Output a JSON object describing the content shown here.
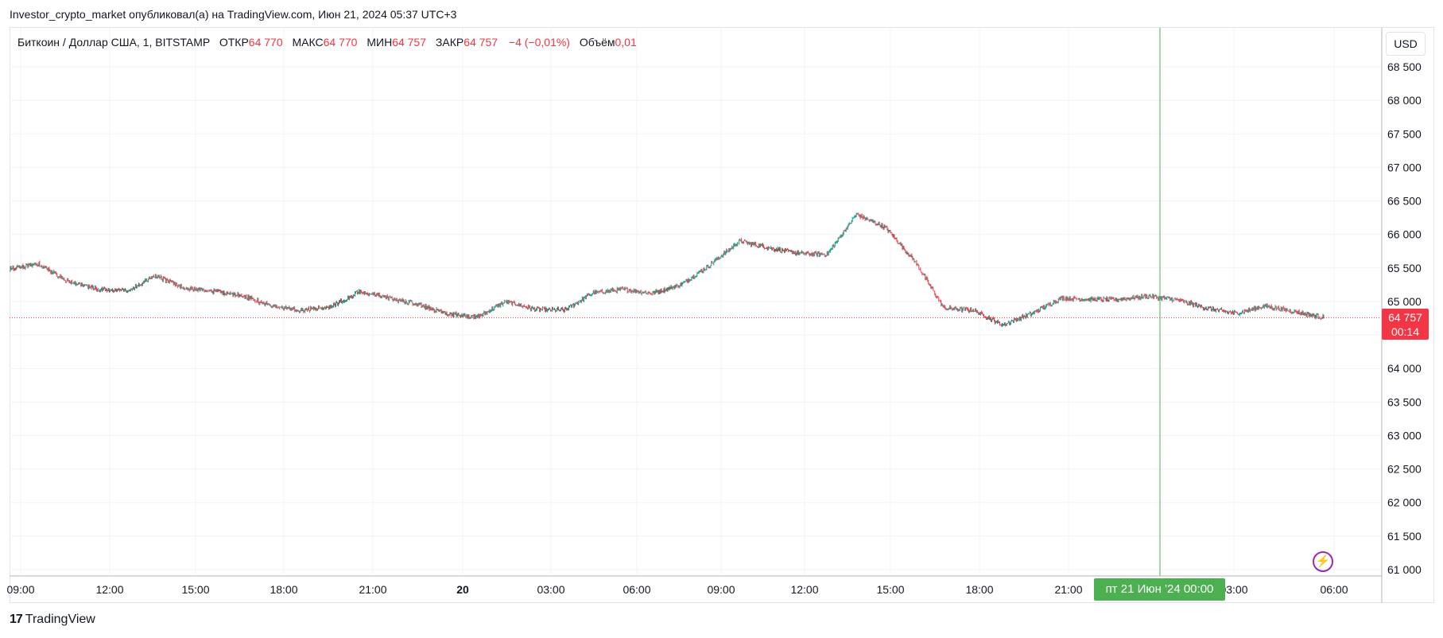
{
  "header": {
    "published_by": "Investor_crypto_market опубликовал(а) на TradingView.com, Июн 21, 2024 05:37 UTC+3"
  },
  "legend": {
    "symbol": "Биткоин / Доллар США, 1, BITSTAMP",
    "open_label": "ОТКР",
    "open_value": "64 770",
    "high_label": "МАКС",
    "high_value": "64 770",
    "low_label": "МИН",
    "low_value": "64 757",
    "close_label": "ЗАКР",
    "close_value": "64 757",
    "change": "−4 (−0,01%)",
    "volume_label": "Объём",
    "volume_value": "0,01"
  },
  "currency_button": "USD",
  "last_price": {
    "price": "64 757",
    "countdown": "00:14",
    "value": 64757
  },
  "crosshair": {
    "date_label": "пт 21 Июн '24   00:00"
  },
  "footer": {
    "logo": "17",
    "brand": "TradingView"
  },
  "colors": {
    "up": "#089981",
    "down": "#f23645",
    "crosshair": "#4caf50",
    "grid": "#f0f3fa",
    "price_line": "#f23645",
    "alert_icon": "#9c27b0"
  },
  "icons": {
    "alert": "lightning-icon"
  },
  "chart_data": {
    "type": "candlestick",
    "title": "Биткоин / Доллар США, 1, BITSTAMP",
    "y_axis_ticks": [
      "68 500",
      "68 000",
      "67 500",
      "67 000",
      "66 500",
      "66 000",
      "65 500",
      "65 000",
      "64 500",
      "64 000",
      "63 500",
      "63 000",
      "62 500",
      "62 000",
      "61 500",
      "61 000"
    ],
    "x_axis_ticks": [
      "09:00",
      "12:00",
      "15:00",
      "18:00",
      "21:00",
      "20",
      "03:00",
      "06:00",
      "09:00",
      "12:00",
      "15:00",
      "18:00",
      "21:00",
      "03:00",
      "06:00"
    ],
    "ylim": [
      61000,
      68500
    ],
    "x": [
      "19 Jun 09:00",
      "19 Jun 10:00",
      "19 Jun 11:00",
      "19 Jun 12:00",
      "19 Jun 13:00",
      "19 Jun 14:00",
      "19 Jun 15:00",
      "19 Jun 16:00",
      "19 Jun 17:00",
      "19 Jun 18:00",
      "19 Jun 19:00",
      "19 Jun 20:00",
      "19 Jun 21:00",
      "19 Jun 22:00",
      "19 Jun 23:00",
      "20 Jun 00:00",
      "20 Jun 01:00",
      "20 Jun 02:00",
      "20 Jun 03:00",
      "20 Jun 04:00",
      "20 Jun 05:00",
      "20 Jun 06:00",
      "20 Jun 07:00",
      "20 Jun 08:00",
      "20 Jun 09:00",
      "20 Jun 10:00",
      "20 Jun 11:00",
      "20 Jun 12:00",
      "20 Jun 13:00",
      "20 Jun 14:00",
      "20 Jun 15:00",
      "20 Jun 16:00",
      "20 Jun 17:00",
      "20 Jun 18:00",
      "20 Jun 19:00",
      "20 Jun 20:00",
      "20 Jun 21:00",
      "20 Jun 22:00",
      "20 Jun 23:00",
      "21 Jun 00:00",
      "21 Jun 01:00",
      "21 Jun 02:00",
      "21 Jun 03:00",
      "21 Jun 04:00",
      "21 Jun 05:00",
      "21 Jun 05:37"
    ],
    "close": [
      65480,
      65560,
      65300,
      65180,
      65150,
      65380,
      65200,
      65150,
      65080,
      64930,
      64870,
      64920,
      65150,
      65050,
      64950,
      64820,
      64760,
      65000,
      64880,
      64870,
      65130,
      65180,
      65120,
      65250,
      65550,
      65900,
      65800,
      65720,
      65700,
      66300,
      66100,
      65600,
      64900,
      64870,
      64650,
      64820,
      65050,
      65030,
      65030,
      65080,
      65020,
      64900,
      64820,
      64930,
      64850,
      64757
    ],
    "last_price": 64757,
    "crosshair_x": "21 Jun 00:00",
    "grid": true
  }
}
